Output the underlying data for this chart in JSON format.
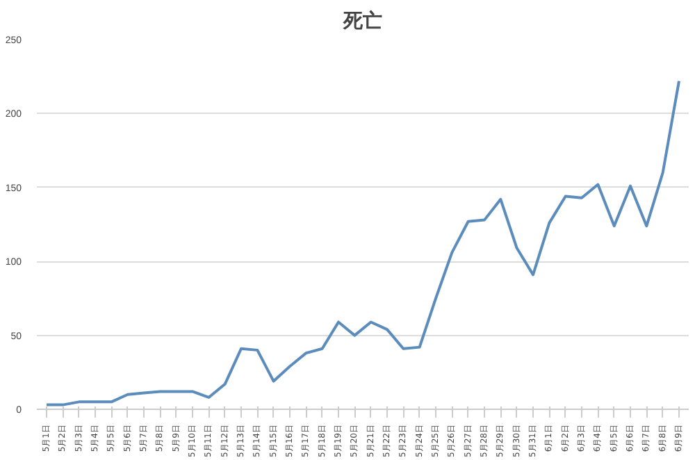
{
  "chart_data": {
    "type": "line",
    "title": "死亡",
    "categories": [
      "5月1日",
      "5月2日",
      "5月3日",
      "5月4日",
      "5月5日",
      "5月6日",
      "5月7日",
      "5月8日",
      "5月9日",
      "5月10日",
      "5月11日",
      "5月12日",
      "5月13日",
      "5月14日",
      "5月15日",
      "5月16日",
      "5月17日",
      "5月18日",
      "5月19日",
      "5月20日",
      "5月21日",
      "5月22日",
      "5月23日",
      "5月24日",
      "5月25日",
      "5月26日",
      "5月27日",
      "5月28日",
      "5月29日",
      "5月30日",
      "5月31日",
      "6月1日",
      "6月2日",
      "6月3日",
      "6月4日",
      "6月5日",
      "6月6日",
      "6月7日",
      "6月8日",
      "6月9日"
    ],
    "series": [
      {
        "color": "#5b8cbb",
        "values": [
          3,
          3,
          5,
          5,
          5,
          10,
          11,
          12,
          12,
          12,
          8,
          17,
          41,
          40,
          19,
          29,
          38,
          41,
          59,
          50,
          59,
          54,
          41,
          42,
          75,
          106,
          127,
          128,
          142,
          109,
          91,
          126,
          144,
          143,
          152,
          124,
          151,
          124,
          160,
          222
        ]
      }
    ],
    "ylim": [
      0,
      250
    ],
    "yticks": [
      0,
      50,
      100,
      150,
      200,
      250
    ],
    "grid": "y",
    "marker": "none",
    "line_style": "solid"
  }
}
